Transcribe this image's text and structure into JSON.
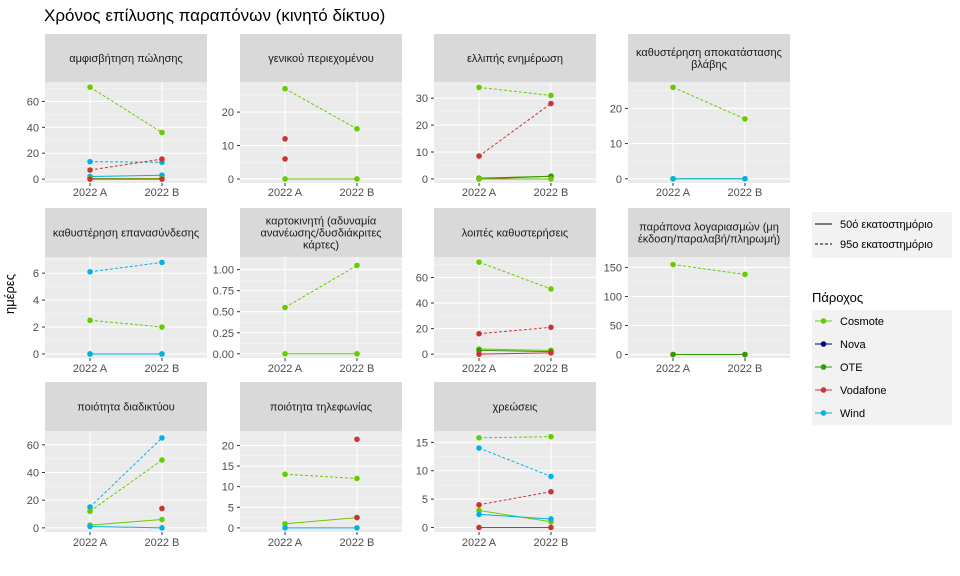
{
  "title": "Χρόνος επίλυσης παραπόνων (κινητό δίκτυο)",
  "ylabel": "ημέρες",
  "colors": {
    "Cosmote": "#66cc00",
    "Nova": "#000080",
    "OTE": "#339900",
    "Vodafone": "#cc3333",
    "Wind": "#00b2e6"
  },
  "legend": {
    "linetype": {
      "items": [
        "50ό εκατοστημόριο",
        "95ο εκατοστημόριο"
      ]
    },
    "providers": {
      "title": "Πάροχος",
      "items": [
        "Cosmote",
        "Nova",
        "OTE",
        "Vodafone",
        "Wind"
      ]
    }
  },
  "chart_data": {
    "type": "line",
    "x_categories": [
      "2022 A",
      "2022 B"
    ],
    "facets": [
      {
        "title": "αμφισβήτηση πώλησης",
        "ylim": [
          -3,
          75
        ],
        "yticks": [
          "0",
          "20",
          "40",
          "60"
        ],
        "ytick_values": [
          0,
          20,
          40,
          60
        ],
        "series": [
          {
            "provider": "Cosmote",
            "stat": "p95",
            "values": [
              71,
              36
            ]
          },
          {
            "provider": "Wind",
            "stat": "p95",
            "values": [
              13.5,
              13
            ]
          },
          {
            "provider": "Vodafone",
            "stat": "p95",
            "values": [
              7,
              15.5
            ]
          },
          {
            "provider": "Wind",
            "stat": "p50",
            "values": [
              2,
              3
            ]
          },
          {
            "provider": "Cosmote",
            "stat": "p50",
            "values": [
              0.5,
              0.5
            ]
          },
          {
            "provider": "Vodafone",
            "stat": "p50",
            "values": [
              0,
              0
            ]
          }
        ]
      },
      {
        "title": "γενικού περιεχομένου",
        "ylim": [
          -1.2,
          29
        ],
        "yticks": [
          "0",
          "10",
          "20"
        ],
        "ytick_values": [
          0,
          10,
          20
        ],
        "series": [
          {
            "provider": "Cosmote",
            "stat": "p95",
            "values": [
              27,
              15
            ]
          },
          {
            "provider": "Vodafone",
            "stat": "p95",
            "values": [
              12,
              null
            ]
          },
          {
            "provider": "Vodafone",
            "stat": "p50",
            "values": [
              6,
              null
            ]
          },
          {
            "provider": "Cosmote",
            "stat": "p50",
            "values": [
              0,
              0
            ]
          }
        ]
      },
      {
        "title": "ελλιπής ενημέρωση",
        "ylim": [
          -1.5,
          36
        ],
        "yticks": [
          "0",
          "10",
          "20",
          "30"
        ],
        "ytick_values": [
          0,
          10,
          20,
          30
        ],
        "series": [
          {
            "provider": "Cosmote",
            "stat": "p95",
            "values": [
              34,
              31
            ]
          },
          {
            "provider": "Vodafone",
            "stat": "p95",
            "values": [
              8.5,
              28
            ]
          },
          {
            "provider": "Vodafone",
            "stat": "p50",
            "values": [
              0,
              1
            ]
          },
          {
            "provider": "OTE",
            "stat": "p50",
            "values": [
              0.3,
              1
            ]
          },
          {
            "provider": "Cosmote",
            "stat": "p50",
            "values": [
              0,
              0
            ]
          }
        ]
      },
      {
        "title": "καθυστέρηση αποκατάστασης βλάβης",
        "ylim": [
          -1.2,
          27.5
        ],
        "yticks": [
          "0",
          "10",
          "20"
        ],
        "ytick_values": [
          0,
          10,
          20
        ],
        "series": [
          {
            "provider": "Cosmote",
            "stat": "p95",
            "values": [
              26,
              17
            ]
          },
          {
            "provider": "Cosmote",
            "stat": "p50",
            "values": [
              0,
              0
            ]
          },
          {
            "provider": "Wind",
            "stat": "p50",
            "values": [
              0,
              0
            ]
          }
        ]
      },
      {
        "title": "καθυστέρηση επανασύνδεσης",
        "ylim": [
          -0.3,
          7.2
        ],
        "yticks": [
          "0",
          "2",
          "4",
          "6"
        ],
        "ytick_values": [
          0,
          2,
          4,
          6
        ],
        "series": [
          {
            "provider": "Wind",
            "stat": "p95",
            "values": [
              6.1,
              6.8
            ]
          },
          {
            "provider": "Cosmote",
            "stat": "p95",
            "values": [
              2.5,
              2
            ]
          },
          {
            "provider": "Cosmote",
            "stat": "p50",
            "values": [
              0,
              0
            ]
          },
          {
            "provider": "Wind",
            "stat": "p50",
            "values": [
              0,
              0
            ]
          }
        ]
      },
      {
        "title": "καρτοκινητή (αδυναμία ανανέωσης/δυσδιάκριτες κάρτες)",
        "ylim": [
          -0.05,
          1.15
        ],
        "yticks": [
          "0.00",
          "0.25",
          "0.50",
          "0.75",
          "1.00"
        ],
        "ytick_values": [
          0,
          0.25,
          0.5,
          0.75,
          1.0
        ],
        "series": [
          {
            "provider": "Cosmote",
            "stat": "p95",
            "values": [
              0.55,
              1.05
            ]
          },
          {
            "provider": "Cosmote",
            "stat": "p50",
            "values": [
              0,
              0
            ]
          }
        ]
      },
      {
        "title": "λοιπές καθυστερήσεις",
        "ylim": [
          -3,
          76
        ],
        "yticks": [
          "0",
          "20",
          "40",
          "60"
        ],
        "ytick_values": [
          0,
          20,
          40,
          60
        ],
        "series": [
          {
            "provider": "Cosmote",
            "stat": "p95",
            "values": [
              72,
              51
            ]
          },
          {
            "provider": "Vodafone",
            "stat": "p95",
            "values": [
              16,
              21
            ]
          },
          {
            "provider": "Cosmote",
            "stat": "p50",
            "values": [
              4,
              3
            ]
          },
          {
            "provider": "OTE",
            "stat": "p50",
            "values": [
              3,
              2
            ]
          },
          {
            "provider": "Vodafone",
            "stat": "p50",
            "values": [
              0,
              1
            ]
          }
        ]
      },
      {
        "title": "παράπονα λογαριασμών (μη έκδοση/παραλαβή/πληρωμή)",
        "ylim": [
          -6,
          168
        ],
        "yticks": [
          "0",
          "50",
          "100",
          "150"
        ],
        "ytick_values": [
          0,
          50,
          100,
          150
        ],
        "series": [
          {
            "provider": "Cosmote",
            "stat": "p95",
            "values": [
              155,
              138
            ]
          },
          {
            "provider": "Cosmote",
            "stat": "p50",
            "values": [
              0,
              0
            ]
          },
          {
            "provider": "OTE",
            "stat": "p50",
            "values": [
              0,
              0
            ]
          }
        ]
      },
      {
        "title": "ποιότητα διαδικτύου",
        "ylim": [
          -3,
          70
        ],
        "yticks": [
          "0",
          "20",
          "40",
          "60"
        ],
        "ytick_values": [
          0,
          20,
          40,
          60
        ],
        "series": [
          {
            "provider": "Wind",
            "stat": "p95",
            "values": [
              15,
              65
            ]
          },
          {
            "provider": "Cosmote",
            "stat": "p95",
            "values": [
              12,
              49
            ]
          },
          {
            "provider": "Vodafone",
            "stat": "p95",
            "values": [
              null,
              14
            ]
          },
          {
            "provider": "Cosmote",
            "stat": "p50",
            "values": [
              2,
              6
            ]
          },
          {
            "provider": "Wind",
            "stat": "p50",
            "values": [
              1,
              0
            ]
          }
        ]
      },
      {
        "title": "ποιότητα τηλεφωνίας",
        "ylim": [
          -1,
          23.5
        ],
        "yticks": [
          "0",
          "5",
          "10",
          "15",
          "20"
        ],
        "ytick_values": [
          0,
          5,
          10,
          15,
          20
        ],
        "series": [
          {
            "provider": "Cosmote",
            "stat": "p95",
            "values": [
              13,
              12
            ]
          },
          {
            "provider": "Vodafone",
            "stat": "p95",
            "values": [
              null,
              21.5
            ]
          },
          {
            "provider": "Cosmote",
            "stat": "p50",
            "values": [
              1,
              2.5
            ]
          },
          {
            "provider": "Vodafone",
            "stat": "p50",
            "values": [
              null,
              2.5
            ]
          },
          {
            "provider": "Wind",
            "stat": "p50",
            "values": [
              0,
              0
            ]
          }
        ]
      },
      {
        "title": "χρεώσεις",
        "ylim": [
          -0.8,
          17
        ],
        "yticks": [
          "0",
          "5",
          "10",
          "15"
        ],
        "ytick_values": [
          0,
          5,
          10,
          15
        ],
        "series": [
          {
            "provider": "Cosmote",
            "stat": "p95",
            "values": [
              15.8,
              16
            ]
          },
          {
            "provider": "Wind",
            "stat": "p95",
            "values": [
              14,
              9
            ]
          },
          {
            "provider": "Vodafone",
            "stat": "p95",
            "values": [
              4,
              6.3
            ]
          },
          {
            "provider": "Cosmote",
            "stat": "p50",
            "values": [
              3,
              1
            ]
          },
          {
            "provider": "Wind",
            "stat": "p50",
            "values": [
              2.3,
              1.5
            ]
          },
          {
            "provider": "Vodafone",
            "stat": "p50",
            "values": [
              0,
              0
            ]
          }
        ]
      }
    ]
  }
}
